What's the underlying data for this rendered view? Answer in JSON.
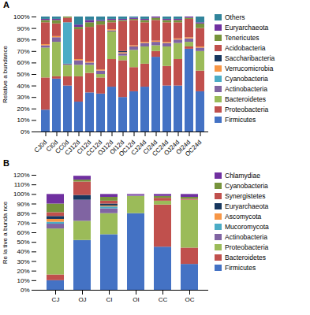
{
  "chart_data": [
    {
      "type": "bar",
      "title": "A",
      "stacked": true,
      "legend": "right",
      "grid": false,
      "ylabel": "Relative a bundance",
      "categories": [
        "CJ0d",
        "CI0d",
        "CC0d",
        "CJ12d",
        "CI12d",
        "CC12d",
        "OJ12d",
        "OI12d",
        "OC12d",
        "CJ24d",
        "CI24d",
        "CC24d",
        "OJ24d",
        "OI24d",
        "OC24d"
      ],
      "series": [
        {
          "name": "Firmicutes",
          "color": "#4472c4",
          "values": [
            0.19,
            0.46,
            0.4,
            0.26,
            0.34,
            0.33,
            0.39,
            0.3,
            0.35,
            0.39,
            0.65,
            0.4,
            0.4,
            0.72,
            0.35
          ]
        },
        {
          "name": "Proteobacteria",
          "color": "#c0504d",
          "values": [
            0.28,
            0.02,
            0.08,
            0.22,
            0.17,
            0.14,
            0.24,
            0.32,
            0.21,
            0.2,
            0.05,
            0.17,
            0.23,
            0.02,
            0.18
          ]
        },
        {
          "name": "Bacteroidetes",
          "color": "#9bbb59",
          "values": [
            0.26,
            0.3,
            0.1,
            0.1,
            0.07,
            0.03,
            0.24,
            0.04,
            0.15,
            0.15,
            0.05,
            0.17,
            0.14,
            0.04,
            0.17
          ]
        },
        {
          "name": "Actinobacteria",
          "color": "#8064a2",
          "values": [
            0.02,
            0.04,
            0.01,
            0.04,
            0.02,
            0.03,
            0.01,
            0.02,
            0.03,
            0.03,
            0.03,
            0.03,
            0.03,
            0.03,
            0.03
          ]
        },
        {
          "name": "Cyanobacteria",
          "color": "#4bacc6",
          "values": [
            0.0,
            0.0,
            0.36,
            0.0,
            0.0,
            0.0,
            0.0,
            0.0,
            0.0,
            0.0,
            0.0,
            0.0,
            0.0,
            0.0,
            0.0
          ]
        },
        {
          "name": "Verrucomicrobia",
          "color": "#f79646",
          "values": [
            0.01,
            0.01,
            0.0,
            0.01,
            0.01,
            0.01,
            0.01,
            0.01,
            0.01,
            0.01,
            0.01,
            0.01,
            0.01,
            0.01,
            0.01
          ]
        },
        {
          "name": "Saccharibacteria",
          "color": "#17375e",
          "values": [
            0.0,
            0.0,
            0.0,
            0.0,
            0.0,
            0.0,
            0.0,
            0.01,
            0.0,
            0.0,
            0.0,
            0.0,
            0.0,
            0.0,
            0.0
          ]
        },
        {
          "name": "Acidobacteria",
          "color": "#c0504d",
          "values": [
            0.19,
            0.11,
            0.04,
            0.26,
            0.3,
            0.39,
            0.06,
            0.26,
            0.22,
            0.17,
            0.18,
            0.17,
            0.14,
            0.16,
            0.16
          ]
        },
        {
          "name": "Tenericutes",
          "color": "#76933c",
          "values": [
            0.02,
            0.03,
            0.01,
            0.02,
            0.04,
            0.03,
            0.02,
            0.01,
            0.01,
            0.02,
            0.02,
            0.02,
            0.02,
            0.01,
            0.04
          ]
        },
        {
          "name": "Euryarchaeota",
          "color": "#7030a0",
          "values": [
            0.01,
            0.01,
            0.0,
            0.02,
            0.02,
            0.01,
            0.01,
            0.01,
            0.01,
            0.01,
            0.01,
            0.01,
            0.01,
            0.01,
            0.01
          ]
        },
        {
          "name": "Others",
          "color": "#31849b",
          "values": [
            0.02,
            0.02,
            0.0,
            0.07,
            0.03,
            0.03,
            0.02,
            0.02,
            0.01,
            0.02,
            0.0,
            0.02,
            0.02,
            0.0,
            0.05
          ]
        }
      ],
      "ylim": [
        0,
        1.0
      ],
      "yticks": [
        {
          "value": 0,
          "label": "0%"
        },
        {
          "value": 0.1,
          "label": "10%"
        },
        {
          "value": 0.2,
          "label": "20%"
        },
        {
          "value": 0.3,
          "label": "30%"
        },
        {
          "value": 0.4,
          "label": "40%"
        },
        {
          "value": 0.5,
          "label": "50%"
        },
        {
          "value": 0.6,
          "label": "60%"
        },
        {
          "value": 0.7,
          "label": "70%"
        },
        {
          "value": 0.8,
          "label": "80%"
        },
        {
          "value": 0.9,
          "label": "90%"
        },
        {
          "value": 1.0,
          "label": "100%"
        }
      ]
    },
    {
      "type": "bar",
      "title": "B",
      "stacked": true,
      "legend": "right",
      "grid": false,
      "ylabel": "Re la tive a bunda nce",
      "categories": [
        "CJ",
        "OJ",
        "CI",
        "OI",
        "CC",
        "OC"
      ],
      "series": [
        {
          "name": "Firmicutes",
          "color": "#4472c4",
          "values": [
            0.1,
            0.52,
            0.58,
            0.8,
            0.45,
            0.27
          ]
        },
        {
          "name": "Bacteroidetes",
          "color": "#c0504d",
          "values": [
            0.06,
            0.0,
            0.0,
            0.0,
            0.44,
            0.17
          ]
        },
        {
          "name": "Proteobacteria",
          "color": "#9bbb59",
          "values": [
            0.48,
            0.2,
            0.22,
            0.18,
            0.04,
            0.5
          ]
        },
        {
          "name": "Actinobacteria",
          "color": "#8064a2",
          "values": [
            0.05,
            0.22,
            0.05,
            0.01,
            0.0,
            0.0
          ]
        },
        {
          "name": "Mucoromycota",
          "color": "#4bacc6",
          "values": [
            0.02,
            0.0,
            0.02,
            0.0,
            0.0,
            0.0
          ]
        },
        {
          "name": "Ascomycota",
          "color": "#f79646",
          "values": [
            0.03,
            0.0,
            0.01,
            0.0,
            0.0,
            0.0
          ]
        },
        {
          "name": "Euryarchaeota",
          "color": "#17375e",
          "values": [
            0.03,
            0.05,
            0.02,
            0.0,
            0.0,
            0.0
          ]
        },
        {
          "name": "Synergistetes",
          "color": "#c0504d",
          "values": [
            0.04,
            0.14,
            0.03,
            0.0,
            0.03,
            0.01
          ]
        },
        {
          "name": "Cyanobacteria",
          "color": "#76933c",
          "values": [
            0.09,
            0.02,
            0.04,
            0.0,
            0.02,
            0.02
          ]
        },
        {
          "name": "Chlamydiae",
          "color": "#7030a0",
          "values": [
            0.1,
            0.04,
            0.03,
            0.01,
            0.02,
            0.03
          ]
        }
      ],
      "ylim": [
        0,
        1.2
      ],
      "yticks": [
        {
          "value": 0,
          "label": "0%"
        },
        {
          "value": 0.1,
          "label": "10%"
        },
        {
          "value": 0.2,
          "label": "20%"
        },
        {
          "value": 0.3,
          "label": "30%"
        },
        {
          "value": 0.4,
          "label": "40%"
        },
        {
          "value": 0.5,
          "label": "50%"
        },
        {
          "value": 0.6,
          "label": "60%"
        },
        {
          "value": 0.7,
          "label": "70%"
        },
        {
          "value": 0.8,
          "label": "80%"
        },
        {
          "value": 0.9,
          "label": "90%"
        },
        {
          "value": 1.0,
          "label": "100%"
        },
        {
          "value": 1.1,
          "label": "110%"
        },
        {
          "value": 1.2,
          "label": "120%"
        }
      ]
    }
  ]
}
